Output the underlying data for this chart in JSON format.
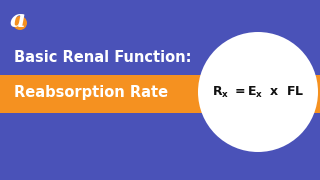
{
  "bg_color": "#4a52b8",
  "title_line1": "Basic Renal Function:",
  "title_line2": "Reabsorption Rate",
  "banner_color": "#f59120",
  "title_color": "#ffffff",
  "banner_text_color": "#ffffff",
  "circle_color": "#ffffff",
  "formula_color": "#111111",
  "logo_letter_color": "#ffffff",
  "logo_dot_color": "#f59120",
  "fig_width": 3.2,
  "fig_height": 1.8,
  "dpi": 100
}
